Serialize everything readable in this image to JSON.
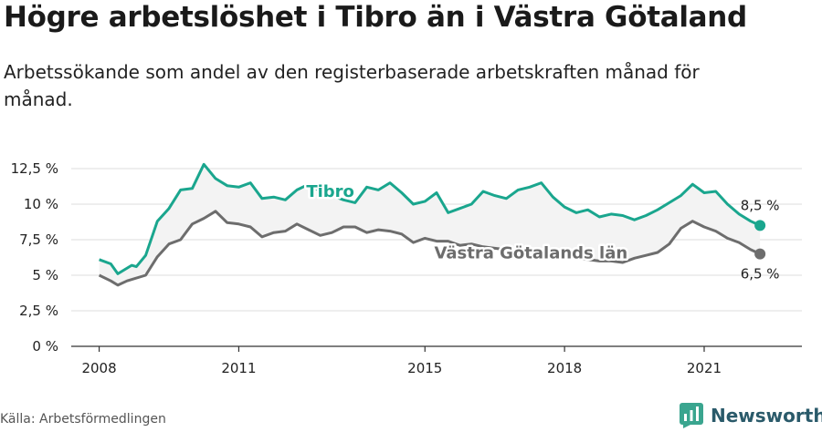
{
  "header": {
    "title": "Högre arbetslöshet i Tibro än i Västra Götaland",
    "subtitle": "Arbetssökande som andel av den registerbaserade arbetskraften månad för månad."
  },
  "footer": {
    "source": "Källa: Arbetsförmedlingen",
    "brand": "Newsworthy",
    "brand_icon": "newsworthy-logo-icon"
  },
  "colors": {
    "tibro": "#1aa68e",
    "region": "#6d6d6d",
    "band": "#f3f3f3",
    "grid": "#dddddd",
    "brand": "#2a5a6a"
  },
  "chart_data": {
    "type": "line",
    "x_unit": "year",
    "xlim": [
      2007.4,
      2023.1
    ],
    "ylim": [
      0,
      12.5
    ],
    "x_ticks": [
      2008,
      2011,
      2015,
      2018,
      2021
    ],
    "x_tick_labels": [
      "2008",
      "2011",
      "2015",
      "2018",
      "2021"
    ],
    "y_ticks": [
      0,
      2.5,
      5,
      7.5,
      10,
      12.5
    ],
    "y_tick_labels": [
      "0 %",
      "2,5 %",
      "5 %",
      "7,5 %",
      "10 %",
      "12,5 %"
    ],
    "grid": true,
    "shade_between_series": true,
    "series": [
      {
        "name": "Tibro",
        "end_label": "8,5 %",
        "points": [
          [
            2008.0,
            6.1
          ],
          [
            2008.25,
            5.8
          ],
          [
            2008.4,
            5.1
          ],
          [
            2008.7,
            5.7
          ],
          [
            2008.8,
            5.6
          ],
          [
            2009.0,
            6.4
          ],
          [
            2009.25,
            8.8
          ],
          [
            2009.5,
            9.7
          ],
          [
            2009.75,
            11.0
          ],
          [
            2010.0,
            11.1
          ],
          [
            2010.25,
            12.8
          ],
          [
            2010.5,
            11.8
          ],
          [
            2010.75,
            11.3
          ],
          [
            2011.0,
            11.2
          ],
          [
            2011.25,
            11.5
          ],
          [
            2011.5,
            10.4
          ],
          [
            2011.75,
            10.5
          ],
          [
            2012.0,
            10.3
          ],
          [
            2012.25,
            11.0
          ],
          [
            2012.5,
            11.4
          ],
          [
            2012.75,
            10.9
          ],
          [
            2013.0,
            10.6
          ],
          [
            2013.25,
            10.3
          ],
          [
            2013.5,
            10.1
          ],
          [
            2013.75,
            11.2
          ],
          [
            2014.0,
            11.0
          ],
          [
            2014.25,
            11.5
          ],
          [
            2014.5,
            10.8
          ],
          [
            2014.75,
            10.0
          ],
          [
            2015.0,
            10.2
          ],
          [
            2015.25,
            10.8
          ],
          [
            2015.5,
            9.4
          ],
          [
            2015.75,
            9.7
          ],
          [
            2016.0,
            10.0
          ],
          [
            2016.25,
            10.9
          ],
          [
            2016.5,
            10.6
          ],
          [
            2016.75,
            10.4
          ],
          [
            2017.0,
            11.0
          ],
          [
            2017.25,
            11.2
          ],
          [
            2017.5,
            11.5
          ],
          [
            2017.75,
            10.5
          ],
          [
            2018.0,
            9.8
          ],
          [
            2018.25,
            9.4
          ],
          [
            2018.5,
            9.6
          ],
          [
            2018.75,
            9.1
          ],
          [
            2019.0,
            9.3
          ],
          [
            2019.25,
            9.2
          ],
          [
            2019.5,
            8.9
          ],
          [
            2019.75,
            9.2
          ],
          [
            2020.0,
            9.6
          ],
          [
            2020.25,
            10.1
          ],
          [
            2020.5,
            10.6
          ],
          [
            2020.75,
            11.4
          ],
          [
            2021.0,
            10.8
          ],
          [
            2021.25,
            10.9
          ],
          [
            2021.5,
            10.0
          ],
          [
            2021.75,
            9.3
          ],
          [
            2022.0,
            8.8
          ],
          [
            2022.2,
            8.5
          ]
        ]
      },
      {
        "name": "Västra Götalands län",
        "end_label": "6,5 %",
        "points": [
          [
            2008.0,
            5.0
          ],
          [
            2008.25,
            4.6
          ],
          [
            2008.4,
            4.3
          ],
          [
            2008.6,
            4.6
          ],
          [
            2009.0,
            5.0
          ],
          [
            2009.25,
            6.3
          ],
          [
            2009.5,
            7.2
          ],
          [
            2009.75,
            7.5
          ],
          [
            2010.0,
            8.6
          ],
          [
            2010.25,
            9.0
          ],
          [
            2010.5,
            9.5
          ],
          [
            2010.75,
            8.7
          ],
          [
            2011.0,
            8.6
          ],
          [
            2011.25,
            8.4
          ],
          [
            2011.5,
            7.7
          ],
          [
            2011.75,
            8.0
          ],
          [
            2012.0,
            8.1
          ],
          [
            2012.25,
            8.6
          ],
          [
            2012.5,
            8.2
          ],
          [
            2012.75,
            7.8
          ],
          [
            2013.0,
            8.0
          ],
          [
            2013.25,
            8.4
          ],
          [
            2013.5,
            8.4
          ],
          [
            2013.75,
            8.0
          ],
          [
            2014.0,
            8.2
          ],
          [
            2014.25,
            8.1
          ],
          [
            2014.5,
            7.9
          ],
          [
            2014.75,
            7.3
          ],
          [
            2015.0,
            7.6
          ],
          [
            2015.25,
            7.4
          ],
          [
            2015.5,
            7.4
          ],
          [
            2015.75,
            7.1
          ],
          [
            2016.0,
            7.2
          ],
          [
            2016.25,
            7.0
          ],
          [
            2016.5,
            6.9
          ],
          [
            2016.75,
            6.8
          ],
          [
            2017.0,
            6.7
          ],
          [
            2017.25,
            6.6
          ],
          [
            2017.5,
            6.4
          ],
          [
            2017.75,
            6.3
          ],
          [
            2018.0,
            6.3
          ],
          [
            2018.25,
            6.2
          ],
          [
            2018.5,
            6.1
          ],
          [
            2018.75,
            6.0
          ],
          [
            2019.0,
            6.0
          ],
          [
            2019.25,
            5.9
          ],
          [
            2019.5,
            6.2
          ],
          [
            2019.75,
            6.4
          ],
          [
            2020.0,
            6.6
          ],
          [
            2020.25,
            7.2
          ],
          [
            2020.5,
            8.3
          ],
          [
            2020.75,
            8.8
          ],
          [
            2021.0,
            8.4
          ],
          [
            2021.25,
            8.1
          ],
          [
            2021.5,
            7.6
          ],
          [
            2021.75,
            7.3
          ],
          [
            2022.0,
            6.8
          ],
          [
            2022.2,
            6.5
          ]
        ]
      }
    ]
  }
}
